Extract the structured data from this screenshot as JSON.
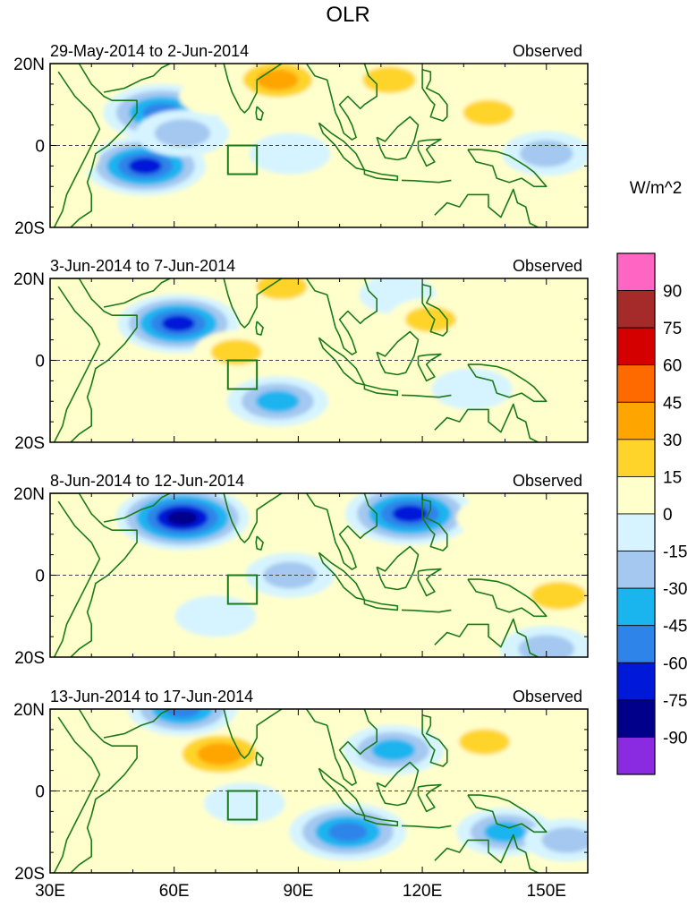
{
  "title": "OLR",
  "units_label": "W/m^2",
  "chart_data": {
    "type": "heatmap",
    "title": "OLR",
    "units": "W/m^2",
    "x_range": [
      30,
      160
    ],
    "y_range": [
      -20,
      20
    ],
    "x_ticks": [
      {
        "value": 30,
        "label": "30E"
      },
      {
        "value": 60,
        "label": "60E"
      },
      {
        "value": 90,
        "label": "90E"
      },
      {
        "value": 120,
        "label": "120E"
      },
      {
        "value": 150,
        "label": "150E"
      }
    ],
    "y_ticks": [
      {
        "value": 20,
        "label": "20N"
      },
      {
        "value": 0,
        "label": "0"
      },
      {
        "value": -20,
        "label": "20S"
      }
    ],
    "colorbar": {
      "labels": [
        "90",
        "75",
        "60",
        "45",
        "30",
        "15",
        "0",
        "-15",
        "-30",
        "-45",
        "-60",
        "-75",
        "-90"
      ],
      "colors": [
        "#ff66c4",
        "#a52a2a",
        "#d40000",
        "#ff6a00",
        "#ffa500",
        "#ffd42a",
        "#ffffcc",
        "#d6f4ff",
        "#a4c8f0",
        "#1ab4ef",
        "#2e84e8",
        "#0018d8",
        "#00008b",
        "#8a2be2"
      ]
    },
    "reference_box": {
      "lon": [
        73,
        80
      ],
      "lat": [
        -7,
        0
      ]
    },
    "panels": [
      {
        "period": "29-May-2014 to 2-Jun-2014",
        "tag": "Observed",
        "anomalies": [
          {
            "lon": 57,
            "lat": 8,
            "value": -70
          },
          {
            "lon": 53,
            "lat": -5,
            "value": -75
          },
          {
            "lon": 62,
            "lat": 3,
            "value": -40
          },
          {
            "lon": 88,
            "lat": -2,
            "value": -25
          },
          {
            "lon": 150,
            "lat": -2,
            "value": -35
          },
          {
            "lon": 85,
            "lat": 16,
            "value": 45
          },
          {
            "lon": 112,
            "lat": 16,
            "value": 35
          },
          {
            "lon": 136,
            "lat": 8,
            "value": 30
          },
          {
            "lon": 70,
            "lat": 12,
            "value": 15
          },
          {
            "lon": 33,
            "lat": -3,
            "value": 15
          }
        ]
      },
      {
        "period": "3-Jun-2014 to 7-Jun-2014",
        "tag": "Observed",
        "anomalies": [
          {
            "lon": 61,
            "lat": 9,
            "value": -75
          },
          {
            "lon": 85,
            "lat": -10,
            "value": -50
          },
          {
            "lon": 114,
            "lat": 16,
            "value": -20
          },
          {
            "lon": 132,
            "lat": -7,
            "value": -25
          },
          {
            "lon": 75,
            "lat": 2,
            "value": 30
          },
          {
            "lon": 86,
            "lat": 18,
            "value": 30
          },
          {
            "lon": 122,
            "lat": 10,
            "value": 30
          },
          {
            "lon": 150,
            "lat": 2,
            "value": 25
          },
          {
            "lon": 36,
            "lat": 4,
            "value": 15
          }
        ]
      },
      {
        "period": "8-Jun-2014 to 12-Jun-2014",
        "tag": "Observed",
        "anomalies": [
          {
            "lon": 62,
            "lat": 14,
            "value": -90
          },
          {
            "lon": 117,
            "lat": 15,
            "value": -85
          },
          {
            "lon": 88,
            "lat": 0,
            "value": -35
          },
          {
            "lon": 150,
            "lat": -18,
            "value": -40
          },
          {
            "lon": 70,
            "lat": -10,
            "value": -25
          },
          {
            "lon": 138,
            "lat": 14,
            "value": 25
          },
          {
            "lon": 153,
            "lat": -5,
            "value": 40
          },
          {
            "lon": 92,
            "lat": -11,
            "value": 20
          },
          {
            "lon": 33,
            "lat": 8,
            "value": 15
          }
        ]
      },
      {
        "period": "13-Jun-2014 to 17-Jun-2014",
        "tag": "Observed",
        "anomalies": [
          {
            "lon": 71,
            "lat": 9,
            "value": 55
          },
          {
            "lon": 135,
            "lat": 12,
            "value": 30
          },
          {
            "lon": 40,
            "lat": 10,
            "value": 20
          },
          {
            "lon": 102,
            "lat": -10,
            "value": -70
          },
          {
            "lon": 113,
            "lat": 10,
            "value": -50
          },
          {
            "lon": 140,
            "lat": -10,
            "value": -45
          },
          {
            "lon": 62,
            "lat": 20,
            "value": -60
          },
          {
            "lon": 77,
            "lat": -3,
            "value": -25
          },
          {
            "lon": 155,
            "lat": -12,
            "value": -30
          }
        ]
      }
    ]
  }
}
